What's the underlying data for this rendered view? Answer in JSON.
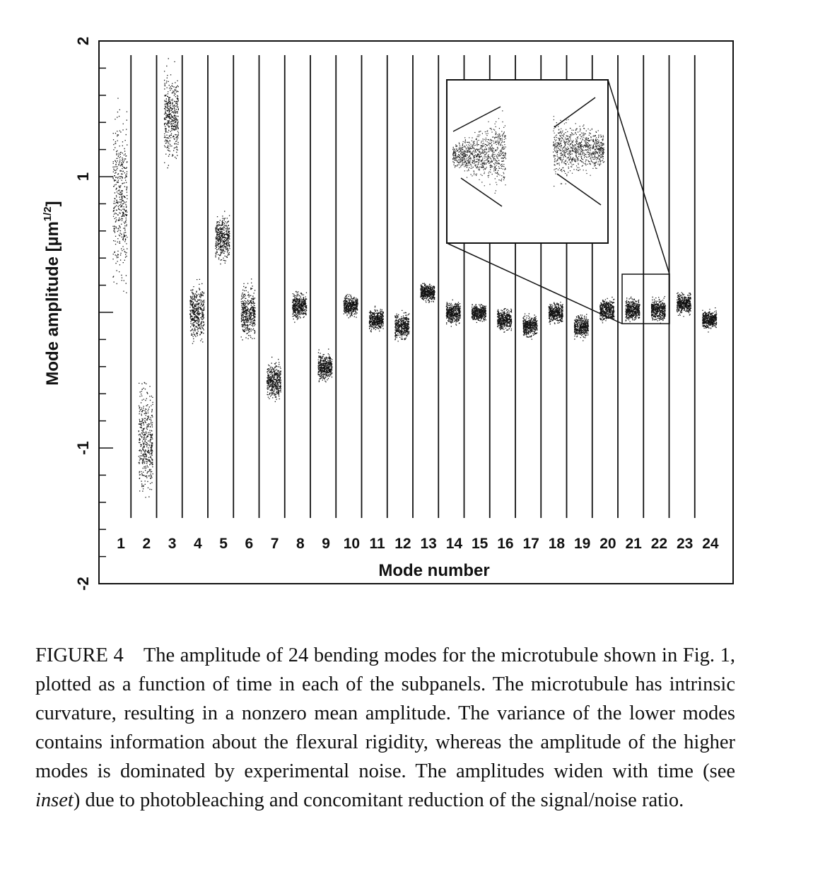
{
  "chart_data": {
    "type": "scatter",
    "xlabel": "Mode number",
    "ylabel": "Mode amplitude [µm",
    "ylabel_superscript": "1/2",
    "ylabel_close": "]",
    "ylim": [
      -2,
      2
    ],
    "yticks": [
      {
        "value": -2,
        "label": "-2"
      },
      {
        "value": -1,
        "label": "-1"
      },
      {
        "value": 1,
        "label": "1"
      },
      {
        "value": 2,
        "label": "2"
      }
    ],
    "categories": [
      "1",
      "2",
      "3",
      "4",
      "5",
      "6",
      "7",
      "8",
      "9",
      "10",
      "11",
      "12",
      "13",
      "14",
      "15",
      "16",
      "17",
      "18",
      "19",
      "20",
      "21",
      "22",
      "23",
      "24"
    ],
    "mode_mean": [
      0.85,
      -0.95,
      1.45,
      0.0,
      0.55,
      0.0,
      -0.5,
      0.05,
      -0.4,
      0.05,
      -0.05,
      -0.1,
      0.15,
      0.0,
      0.0,
      -0.05,
      -0.1,
      0.0,
      -0.1,
      0.02,
      0.02,
      0.02,
      0.07,
      -0.05
    ],
    "mode_spread": [
      0.95,
      0.6,
      0.5,
      0.3,
      0.25,
      0.3,
      0.2,
      0.15,
      0.15,
      0.12,
      0.12,
      0.15,
      0.1,
      0.12,
      0.1,
      0.12,
      0.12,
      0.12,
      0.12,
      0.12,
      0.12,
      0.12,
      0.12,
      0.1
    ],
    "inset": {
      "description_source": "inset",
      "zoom_of_modes": [
        "21",
        "22"
      ]
    },
    "grid": false
  },
  "caption": {
    "label": "FIGURE 4",
    "text_before_italic": "The amplitude of 24 bending modes for the microtubule shown in Fig. 1, plotted as a function of time in each of the subpanels. The microtubule has intrinsic curvature, resulting in a nonzero mean amplitude. The variance of the lower modes contains information about the flexural rigidity, whereas the amplitude of the higher modes is dominated by experimental noise. The amplitudes widen with time (see ",
    "italic": "inset",
    "text_after_italic": ") due to photobleaching and concomitant reduction of the signal/noise ratio."
  }
}
